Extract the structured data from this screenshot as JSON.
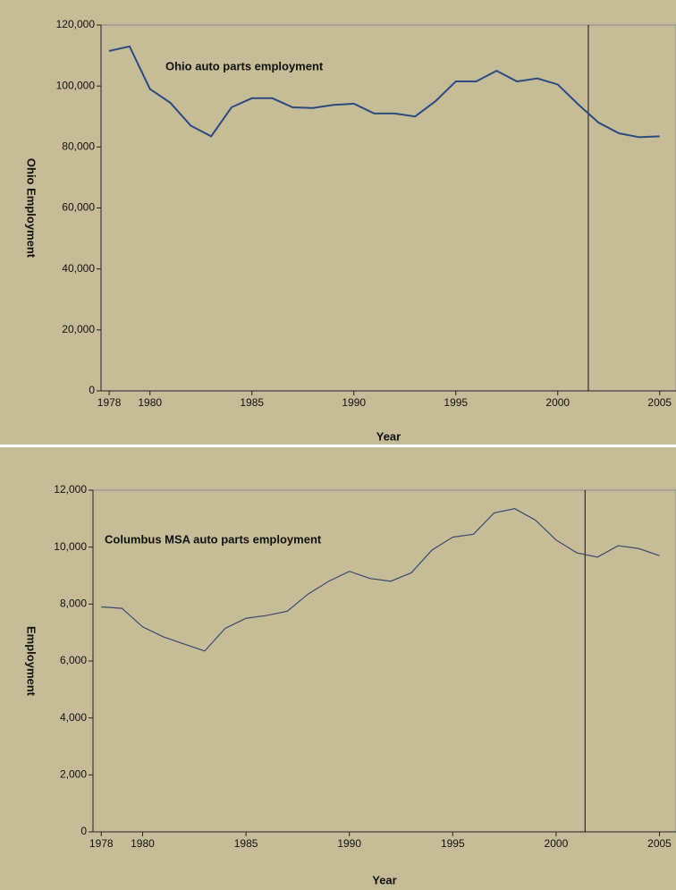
{
  "chart_data": [
    {
      "type": "line",
      "annotation": "Ohio auto parts employment",
      "xlabel": "Year",
      "ylabel": "Ohio Employment",
      "x": [
        1978,
        1979,
        1980,
        1981,
        1982,
        1983,
        1984,
        1985,
        1986,
        1987,
        1988,
        1989,
        1990,
        1991,
        1992,
        1993,
        1994,
        1995,
        1996,
        1997,
        1998,
        1999,
        2000,
        2001,
        2002,
        2003,
        2004,
        2005
      ],
      "series": [
        {
          "name": "Ohio auto parts employment",
          "color": "#2b4b80",
          "values": [
            111500,
            113000,
            99000,
            94500,
            87000,
            83500,
            93000,
            96000,
            96000,
            93000,
            92800,
            93800,
            94200,
            91000,
            91000,
            90000,
            95000,
            101500,
            101500,
            105000,
            101500,
            102500,
            100500,
            94000,
            88000,
            84500,
            83200,
            83500
          ]
        }
      ],
      "xlim": [
        1977.6,
        2005.8
      ],
      "xticks": [
        1978,
        1980,
        1985,
        1990,
        1995,
        2000,
        2005
      ],
      "ylim": [
        0,
        120000
      ],
      "yticks": [
        0,
        {
          "value": 20000,
          "label": "20,000"
        },
        {
          "value": 40000,
          "label": "40,000"
        },
        {
          "value": 60000,
          "label": "60,000"
        },
        {
          "value": 80000,
          "label": "80,000"
        },
        {
          "value": 100000,
          "label": "100,000"
        },
        {
          "value": 120000,
          "label": "120,000"
        }
      ],
      "vline": 2001.5
    },
    {
      "type": "line",
      "annotation": "Columbus MSA auto parts employment",
      "xlabel": "Year",
      "ylabel": "Employment",
      "x": [
        1978,
        1979,
        1980,
        1981,
        1982,
        1983,
        1984,
        1985,
        1986,
        1987,
        1988,
        1989,
        1990,
        1991,
        1992,
        1993,
        1994,
        1995,
        1996,
        1997,
        1998,
        1999,
        2000,
        2001,
        2002,
        2003,
        2004,
        2005
      ],
      "series": [
        {
          "name": "Columbus MSA auto parts employment",
          "color": "#3a4a6e",
          "values": [
            7900,
            7850,
            7200,
            6850,
            6600,
            6350,
            7150,
            7500,
            7600,
            7750,
            8350,
            8800,
            9150,
            8900,
            8800,
            9100,
            9900,
            10350,
            10450,
            11200,
            11350,
            10950,
            10250,
            9800,
            9650,
            10050,
            9950,
            9700
          ]
        }
      ],
      "xlim": [
        1977.6,
        2005.8
      ],
      "xticks": [
        1978,
        1980,
        1985,
        1990,
        1995,
        2000,
        2005
      ],
      "ylim": [
        0,
        12000
      ],
      "yticks": [
        0,
        {
          "value": 2000,
          "label": "2,000"
        },
        {
          "value": 4000,
          "label": "4,000"
        },
        {
          "value": 6000,
          "label": "6,000"
        },
        {
          "value": 8000,
          "label": "8,000"
        },
        {
          "value": 10000,
          "label": "10,000"
        },
        {
          "value": 12000,
          "label": "12,000"
        }
      ],
      "vline": 2001.4
    }
  ]
}
